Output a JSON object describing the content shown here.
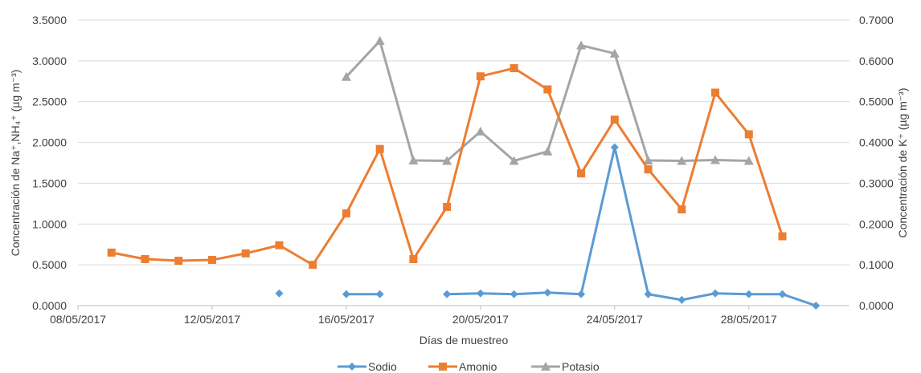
{
  "chart_data": {
    "type": "line",
    "xlabel": "Días de muestreo",
    "ylabel_left": "Concentración de Na⁺,NH₄⁺ (µg m⁻³)",
    "ylabel_right": "Concentración de K⁺ (µg m⁻³)",
    "x_ticks": [
      "08/05/2017",
      "12/05/2017",
      "16/05/2017",
      "20/05/2017",
      "24/05/2017",
      "28/05/2017"
    ],
    "x_range": [
      "2017-05-08",
      "2017-05-31"
    ],
    "y_left_range": [
      0,
      3.5
    ],
    "y_left_ticks": [
      "0.0000",
      "0.5000",
      "1.0000",
      "1.5000",
      "2.0000",
      "2.5000",
      "3.0000",
      "3.5000"
    ],
    "y_right_range": [
      0,
      0.7
    ],
    "y_right_ticks": [
      "0.0000",
      "0.1000",
      "0.2000",
      "0.3000",
      "0.4000",
      "0.5000",
      "0.6000",
      "0.7000"
    ],
    "grid": true,
    "legend_position": "bottom",
    "series": [
      {
        "name": "Sodio",
        "axis": "left",
        "marker": "diamond",
        "color": "#5B9BD5",
        "points": [
          {
            "x": "2017-05-14",
            "y": 0.15
          },
          {
            "x": "2017-05-16",
            "y": 0.14
          },
          {
            "x": "2017-05-17",
            "y": 0.14
          },
          {
            "x": "2017-05-19",
            "y": 0.14
          },
          {
            "x": "2017-05-20",
            "y": 0.15
          },
          {
            "x": "2017-05-21",
            "y": 0.14
          },
          {
            "x": "2017-05-22",
            "y": 0.16
          },
          {
            "x": "2017-05-23",
            "y": 0.14
          },
          {
            "x": "2017-05-24",
            "y": 1.94
          },
          {
            "x": "2017-05-25",
            "y": 0.14
          },
          {
            "x": "2017-05-26",
            "y": 0.07
          },
          {
            "x": "2017-05-27",
            "y": 0.15
          },
          {
            "x": "2017-05-28",
            "y": 0.14
          },
          {
            "x": "2017-05-29",
            "y": 0.14
          },
          {
            "x": "2017-05-30",
            "y": 0.0
          }
        ]
      },
      {
        "name": "Amonio",
        "axis": "left",
        "marker": "square",
        "color": "#ED7D31",
        "points": [
          {
            "x": "2017-05-09",
            "y": 0.65
          },
          {
            "x": "2017-05-10",
            "y": 0.57
          },
          {
            "x": "2017-05-11",
            "y": 0.55
          },
          {
            "x": "2017-05-12",
            "y": 0.56
          },
          {
            "x": "2017-05-13",
            "y": 0.64
          },
          {
            "x": "2017-05-14",
            "y": 0.74
          },
          {
            "x": "2017-05-15",
            "y": 0.5
          },
          {
            "x": "2017-05-16",
            "y": 1.13
          },
          {
            "x": "2017-05-17",
            "y": 1.92
          },
          {
            "x": "2017-05-18",
            "y": 0.57
          },
          {
            "x": "2017-05-19",
            "y": 1.21
          },
          {
            "x": "2017-05-20",
            "y": 2.81
          },
          {
            "x": "2017-05-21",
            "y": 2.91
          },
          {
            "x": "2017-05-22",
            "y": 2.65
          },
          {
            "x": "2017-05-23",
            "y": 1.62
          },
          {
            "x": "2017-05-24",
            "y": 2.28
          },
          {
            "x": "2017-05-25",
            "y": 1.67
          },
          {
            "x": "2017-05-26",
            "y": 1.18
          },
          {
            "x": "2017-05-27",
            "y": 2.61
          },
          {
            "x": "2017-05-28",
            "y": 2.1
          },
          {
            "x": "2017-05-29",
            "y": 0.85
          }
        ]
      },
      {
        "name": "Potasio",
        "axis": "right",
        "marker": "triangle",
        "color": "#A5A5A5",
        "points": [
          {
            "x": "2017-05-16",
            "y": 0.561
          },
          {
            "x": "2017-05-17",
            "y": 0.649
          },
          {
            "x": "2017-05-18",
            "y": 0.356
          },
          {
            "x": "2017-05-19",
            "y": 0.355
          },
          {
            "x": "2017-05-20",
            "y": 0.427
          },
          {
            "x": "2017-05-21",
            "y": 0.355
          },
          {
            "x": "2017-05-22",
            "y": 0.378
          },
          {
            "x": "2017-05-23",
            "y": 0.638
          },
          {
            "x": "2017-05-24",
            "y": 0.618
          },
          {
            "x": "2017-05-25",
            "y": 0.356
          },
          {
            "x": "2017-05-26",
            "y": 0.355
          },
          {
            "x": "2017-05-27",
            "y": 0.357
          },
          {
            "x": "2017-05-28",
            "y": 0.355
          }
        ]
      }
    ]
  }
}
